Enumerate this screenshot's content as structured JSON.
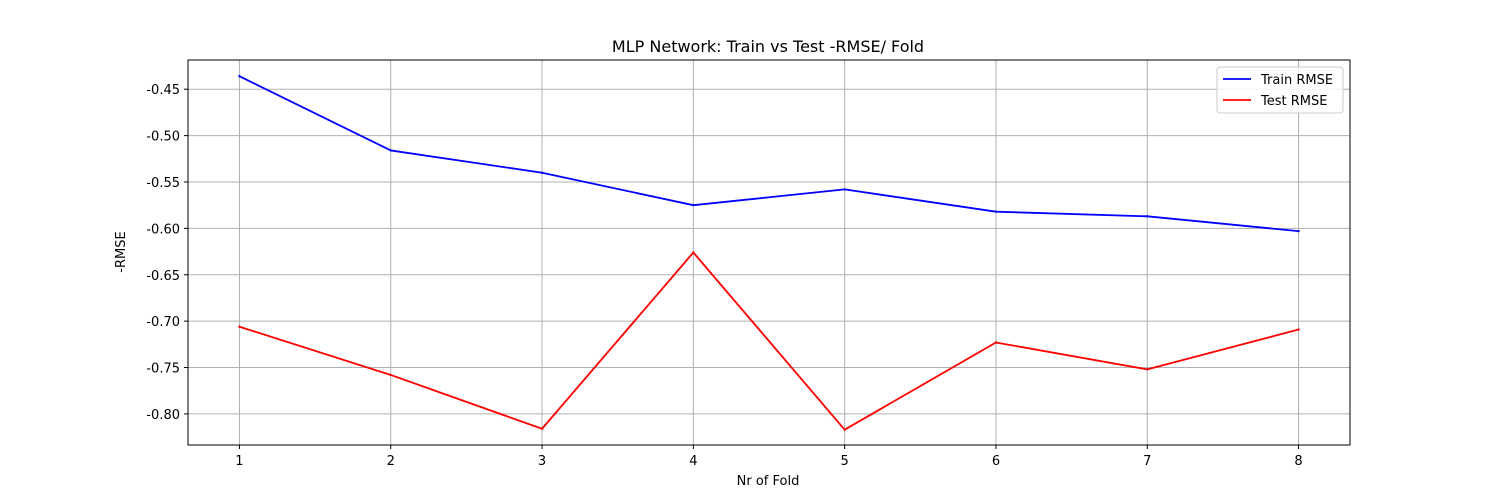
{
  "chart_data": {
    "type": "line",
    "title": "MLP Network: Train vs Test -RMSE/ Fold",
    "xlabel": "Nr of Fold",
    "ylabel": "-RMSE",
    "x": [
      1,
      2,
      3,
      4,
      5,
      6,
      7,
      8
    ],
    "xticks": [
      "1",
      "2",
      "3",
      "4",
      "5",
      "6",
      "7",
      "8"
    ],
    "yticks": [
      "-0.45",
      "-0.50",
      "-0.55",
      "-0.60",
      "-0.65",
      "-0.70",
      "-0.75",
      "-0.80"
    ],
    "xlim": [
      0.66,
      8.34
    ],
    "ylim": [
      -0.8335,
      -0.4185
    ],
    "grid": true,
    "legend_position": "top-right",
    "series": [
      {
        "name": "Train RMSE",
        "color": "#0000ff",
        "values": [
          -0.436,
          -0.516,
          -0.54,
          -0.575,
          -0.558,
          -0.582,
          -0.587,
          -0.603
        ]
      },
      {
        "name": "Test RMSE",
        "color": "#ff0000",
        "values": [
          -0.706,
          -0.758,
          -0.816,
          -0.626,
          -0.817,
          -0.723,
          -0.752,
          -0.709
        ]
      }
    ]
  }
}
